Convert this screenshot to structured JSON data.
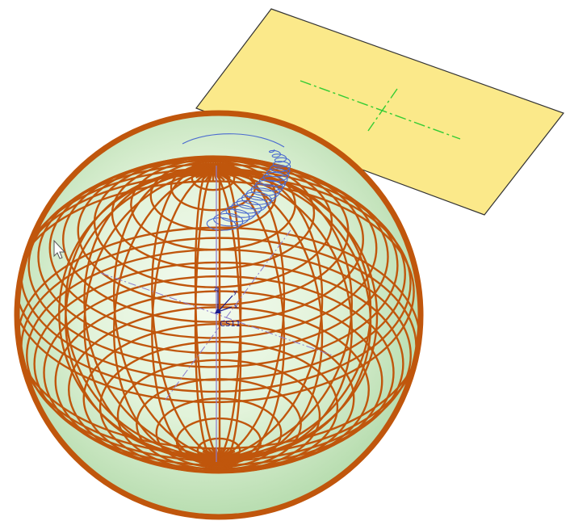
{
  "viewport": {
    "background": "#ffffff"
  },
  "sketch_plane": {
    "fill": "#fbe98a",
    "outline": "#333333",
    "centerline_color": "#33cc33"
  },
  "sphere": {
    "mesh_color": "#c0560c",
    "fill_center": "#f4fbf0",
    "fill_edge": "#b8ddb0"
  },
  "coordinate_system": {
    "label": "CS11",
    "axis_x": "x",
    "axis_y": "y",
    "axis_z": "z",
    "color": "#1a1a8c",
    "datum_color": "#8a7acc"
  },
  "helix_curve": {
    "color": "#4a6ad0"
  },
  "cursor": {
    "icon": "arrow-pointer-icon"
  }
}
